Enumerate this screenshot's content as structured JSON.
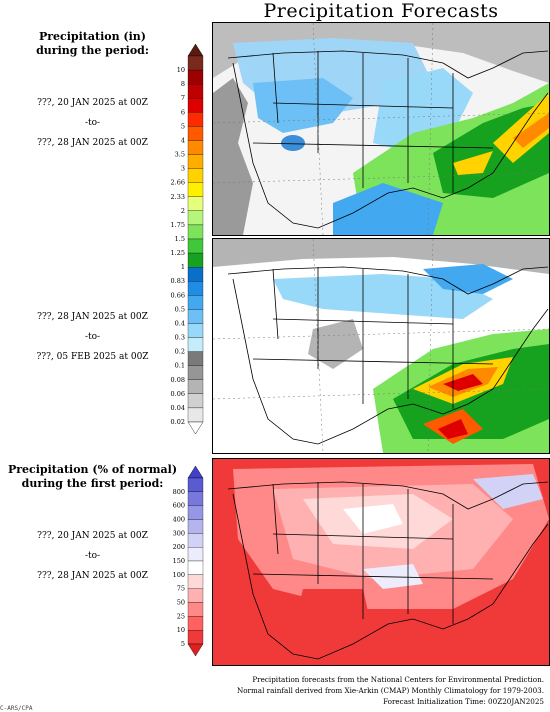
{
  "title": "Precipitation Forecasts",
  "precip_panel": {
    "heading_line1": "Precipitation (in)",
    "heading_line2": "during the period:",
    "colorbar_labels": [
      "10",
      "8",
      "7",
      "6",
      "5",
      "4",
      "3.5",
      "3",
      "2.66",
      "2.33",
      "2",
      "1.75",
      "1.5",
      "1.25",
      "1",
      "0.83",
      "0.66",
      "0.5",
      "0.4",
      "0.3",
      "0.2",
      "0.1",
      "0.08",
      "0.06",
      "0.04",
      "0.02"
    ],
    "colorbar_colors": [
      "#7a2a1c",
      "#9c0000",
      "#bf0000",
      "#de0000",
      "#ff2b00",
      "#ff5a00",
      "#ff8a00",
      "#ffae00",
      "#ffd200",
      "#fff000",
      "#e6ff7a",
      "#b4f57a",
      "#7ce35a",
      "#3fc83a",
      "#16a21e",
      "#0a6fc8",
      "#1f8de6",
      "#42a8f0",
      "#6cc0f5",
      "#98d8f8",
      "#c4ecfb",
      "#7a7a7a",
      "#969696",
      "#b4b4b4",
      "#d0d0d0",
      "#e8e8e8"
    ]
  },
  "periods": [
    {
      "start": "???, 20 JAN 2025 at 00Z",
      "sep": "-to-",
      "end": "???, 28 JAN 2025 at 00Z"
    },
    {
      "start": "???, 28 JAN 2025 at 00Z",
      "sep": "-to-",
      "end": "???, 05 FEB 2025 at 00Z"
    },
    {
      "start": "???, 20 JAN 2025 at 00Z",
      "sep": "-to-",
      "end": "???, 28 JAN 2025 at 00Z"
    }
  ],
  "normal_panel": {
    "heading_line1": "Precipitation (% of normal)",
    "heading_line2": "during the first period:",
    "colorbar_labels": [
      "800",
      "600",
      "400",
      "300",
      "200",
      "150",
      "100",
      "75",
      "50",
      "25",
      "10",
      "5"
    ],
    "colorbar_colors": [
      "#5a5ad2",
      "#7878dc",
      "#9696e6",
      "#b4b4ee",
      "#d2d2f6",
      "#ececfc",
      "#ffffff",
      "#ffd8d8",
      "#ffb0b0",
      "#ff8888",
      "#ff6060",
      "#f03a3a"
    ]
  },
  "footer": {
    "line1": "Precipitation forecasts from the National Centers for Environmental Prediction.",
    "line2": "Normal rainfall derived from Xie-Arkin (CMAP) Monthly Climatology for 1979-2003.",
    "line3": "Forecast Initialization Time: 00Z20JAN2025"
  },
  "corner_tag": "C-ARS/CPA"
}
